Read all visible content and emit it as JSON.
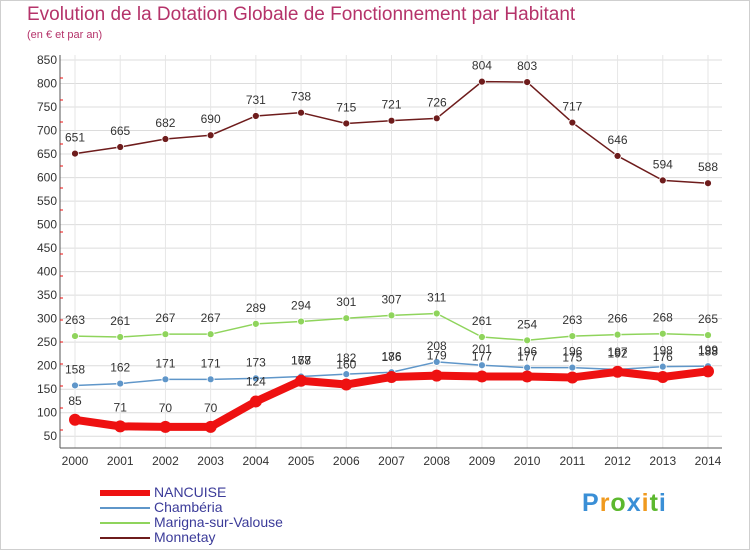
{
  "header": {
    "title": "Evolution de la Dotation Globale de Fonctionnement par Habitant",
    "subtitle": "(en € et par an)"
  },
  "chart_data": {
    "type": "line",
    "title": "Evolution de la Dotation Globale de Fonctionnement par Habitant",
    "subtitle": "(en € et par an)",
    "xlabel": "",
    "ylabel": "",
    "x": [
      "2000",
      "2001",
      "2002",
      "2003",
      "2004",
      "2005",
      "2006",
      "2007",
      "2008",
      "2009",
      "2010",
      "2011",
      "2012",
      "2013",
      "2014"
    ],
    "ylim": [
      25,
      850
    ],
    "yticks": [
      50,
      100,
      150,
      200,
      250,
      300,
      350,
      400,
      450,
      500,
      550,
      600,
      650,
      700,
      750,
      800,
      850
    ],
    "grid": true,
    "legend_position": "bottom-left",
    "series": [
      {
        "name": "NANCUISE",
        "color": "#ee1111",
        "values": [
          85,
          71,
          70,
          70,
          124,
          168,
          160,
          176,
          179,
          177,
          177,
          175,
          187,
          176,
          188
        ]
      },
      {
        "name": "Chambéria",
        "color": "#5f96c9",
        "values": [
          158,
          162,
          171,
          171,
          173,
          177,
          182,
          186,
          208,
          201,
          196,
          196,
          192,
          198,
          199
        ]
      },
      {
        "name": "Marigna-sur-Valouse",
        "color": "#8fd45c",
        "values": [
          263,
          261,
          267,
          267,
          289,
          294,
          301,
          307,
          311,
          261,
          254,
          263,
          266,
          268,
          265
        ]
      },
      {
        "name": "Monnetay",
        "color": "#6e1c1c",
        "values": [
          651,
          665,
          682,
          690,
          731,
          738,
          715,
          721,
          726,
          804,
          803,
          717,
          646,
          594,
          588
        ]
      }
    ]
  },
  "logo": {
    "letters": [
      "P",
      "r",
      "o",
      "x",
      "i",
      "t",
      "i"
    ],
    "colors": [
      "#3a8fd6",
      "#f09a1e",
      "#5cb82e",
      "#3a8fd6",
      "#f09a1e",
      "#5cb82e",
      "#3a8fd6"
    ]
  }
}
